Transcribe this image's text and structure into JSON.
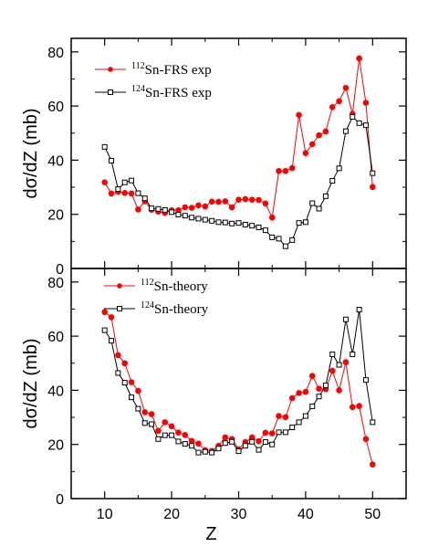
{
  "chart_data": [
    {
      "type": "line",
      "panel": "top",
      "ylabel": "dσ/dZ (mb)",
      "xlim": [
        5,
        55
      ],
      "ylim": [
        0,
        85
      ],
      "yticks": [
        0,
        20,
        40,
        60,
        80
      ],
      "xticks": [
        10,
        20,
        30,
        40,
        50
      ],
      "legend_position": "top-left",
      "series": [
        {
          "name_sup": "112",
          "name_rest": "Sn-FRS exp",
          "marker": "filled-circle",
          "color": "#ff0000",
          "x": [
            10,
            11,
            12,
            13,
            14,
            15,
            16,
            17,
            18,
            19,
            20,
            21,
            22,
            23,
            24,
            25,
            26,
            27,
            28,
            29,
            30,
            31,
            32,
            33,
            34,
            35,
            36,
            37,
            38,
            39,
            40,
            41,
            42,
            43,
            44,
            45,
            46,
            47,
            48,
            49,
            50
          ],
          "y": [
            31.8,
            27.7,
            28.3,
            27.9,
            27.7,
            21.8,
            24.8,
            21.7,
            21.0,
            20.5,
            21.5,
            21.5,
            22.6,
            22.4,
            23.3,
            22.9,
            24.7,
            24.6,
            24.8,
            22.6,
            25.4,
            25.6,
            25.4,
            25.3,
            24.0,
            18.8,
            36.0,
            36.0,
            37.1,
            56.7,
            42.6,
            45.9,
            49.2,
            50.6,
            59.6,
            61.8,
            66.7,
            57.1,
            77.6,
            61.2,
            30.1
          ]
        },
        {
          "name_sup": "124",
          "name_rest": "Sn-FRS exp",
          "marker": "open-square",
          "color": "#000000",
          "x": [
            10,
            11,
            12,
            13,
            14,
            15,
            16,
            17,
            18,
            19,
            20,
            21,
            22,
            23,
            24,
            25,
            26,
            27,
            28,
            29,
            30,
            31,
            32,
            33,
            34,
            35,
            36,
            37,
            38,
            39,
            40,
            41,
            42,
            43,
            44,
            45,
            46,
            47,
            48,
            49,
            50
          ],
          "y": [
            44.9,
            39.8,
            29.3,
            31.8,
            32.5,
            27.8,
            25.9,
            22.2,
            22.0,
            21.6,
            20.8,
            19.9,
            19.5,
            18.8,
            18.4,
            18.0,
            17.6,
            17.1,
            17.0,
            16.6,
            16.8,
            16.2,
            15.8,
            15.2,
            14.1,
            11.5,
            11.0,
            8.2,
            10.5,
            16.8,
            17.1,
            24.1,
            22.1,
            26.7,
            32.4,
            37.0,
            50.7,
            56.0,
            53.7,
            52.9,
            35.2
          ]
        }
      ]
    },
    {
      "type": "line",
      "panel": "bottom",
      "xlabel": "Z",
      "ylabel": "dσ/dZ (mb)",
      "xlim": [
        5,
        55
      ],
      "ylim": [
        0,
        85
      ],
      "yticks": [
        0,
        20,
        40,
        60,
        80
      ],
      "xticks": [
        10,
        20,
        30,
        40,
        50
      ],
      "legend_position": "top-left",
      "series": [
        {
          "name_sup": "112",
          "name_rest": "Sn-theory",
          "marker": "filled-circle",
          "color": "#ff0000",
          "x": [
            10,
            11,
            12,
            13,
            14,
            15,
            16,
            17,
            18,
            19,
            20,
            21,
            22,
            23,
            24,
            25,
            26,
            27,
            28,
            29,
            30,
            31,
            32,
            33,
            34,
            35,
            36,
            37,
            38,
            39,
            40,
            41,
            42,
            43,
            44,
            45,
            46,
            47,
            48,
            49,
            50
          ],
          "y": [
            68.9,
            67.0,
            53.0,
            50.0,
            43.0,
            39.8,
            31.9,
            31.2,
            25.0,
            28.2,
            26.7,
            24.4,
            23.5,
            21.3,
            20.3,
            17.9,
            17.6,
            19.5,
            22.6,
            22.0,
            18.2,
            20.9,
            22.6,
            21.2,
            24.3,
            24.1,
            30.5,
            30.1,
            37.1,
            39.0,
            39.4,
            45.3,
            40.6,
            40.4,
            47.2,
            40.0,
            50.4,
            33.8,
            34.2,
            22.0,
            12.6
          ]
        },
        {
          "name_sup": "124",
          "name_rest": "Sn-theory",
          "marker": "open-square",
          "color": "#000000",
          "x": [
            10,
            11,
            12,
            13,
            14,
            15,
            16,
            17,
            18,
            19,
            20,
            21,
            22,
            23,
            24,
            25,
            26,
            27,
            28,
            29,
            30,
            31,
            32,
            33,
            34,
            35,
            36,
            37,
            38,
            39,
            40,
            41,
            42,
            43,
            44,
            45,
            46,
            47,
            48,
            49,
            50
          ],
          "y": [
            62.2,
            58.3,
            46.4,
            42.8,
            37.4,
            33.2,
            27.9,
            27.5,
            22.0,
            23.4,
            23.4,
            21.1,
            20.2,
            19.5,
            17.0,
            17.3,
            17.0,
            18.5,
            20.5,
            21.0,
            17.5,
            19.5,
            21.0,
            18.0,
            20.9,
            20.0,
            24.5,
            24.5,
            26.3,
            28.2,
            30.5,
            34.1,
            37.7,
            41.8,
            53.3,
            49.4,
            66.2,
            53.3,
            69.8,
            43.8,
            28.2
          ]
        }
      ]
    }
  ]
}
